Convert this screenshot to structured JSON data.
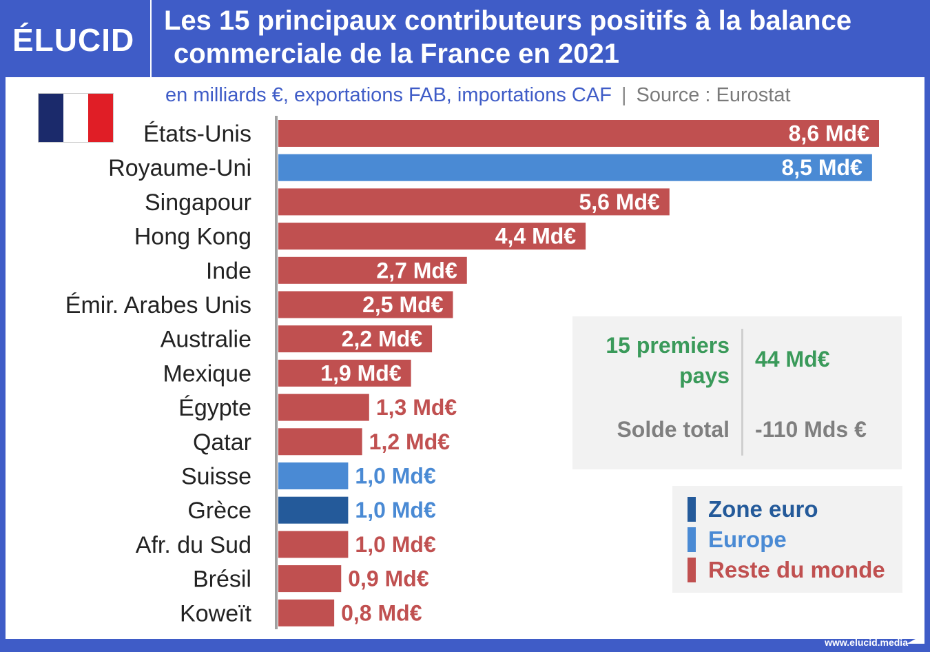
{
  "header": {
    "logo": "ÉLUCID",
    "title_line1": "Les 15 principaux contributeurs positifs à la balance",
    "title_line2": "commerciale de la France en 2021"
  },
  "subtitle": {
    "units": "en milliards €, exportations FAB, importations CAF",
    "separator": "|",
    "source": "Source : Eurostat"
  },
  "flag": {
    "colors": [
      "#1b2a6b",
      "#ffffff",
      "#e01e26"
    ]
  },
  "colors": {
    "zone_euro": "#245a9a",
    "europe": "#4a8ad4",
    "reste_du_monde": "#c05050",
    "summary_green": "#3a9a5a"
  },
  "chart_data": {
    "type": "bar",
    "orientation": "horizontal",
    "title": "Les 15 principaux contributeurs positifs à la balance commerciale de la France en 2021",
    "subtitle": "en milliards €, exportations FAB, importations CAF",
    "categories": [
      "États-Unis",
      "Royaume-Uni",
      "Singapour",
      "Hong Kong",
      "Inde",
      "Émir. Arabes Unis",
      "Australie",
      "Mexique",
      "Égypte",
      "Qatar",
      "Suisse",
      "Grèce",
      "Afr. du Sud",
      "Brésil",
      "Koweït"
    ],
    "values": [
      8.6,
      8.5,
      5.6,
      4.4,
      2.7,
      2.5,
      2.2,
      1.9,
      1.3,
      1.2,
      1.0,
      1.0,
      1.0,
      0.9,
      0.8
    ],
    "value_labels": [
      "8,6 Md€",
      "8,5 Md€",
      "5,6 Md€",
      "4,4 Md€",
      "2,7 Md€",
      "2,5 Md€",
      "2,2 Md€",
      "1,9 Md€",
      "1,3 Md€",
      "1,2 Md€",
      "1,0 Md€",
      "1,0 Md€",
      "1,0 Md€",
      "0,9 Md€",
      "0,8 Md€"
    ],
    "groups": [
      "reste_du_monde",
      "europe",
      "reste_du_monde",
      "reste_du_monde",
      "reste_du_monde",
      "reste_du_monde",
      "reste_du_monde",
      "reste_du_monde",
      "reste_du_monde",
      "reste_du_monde",
      "europe",
      "zone_euro",
      "reste_du_monde",
      "reste_du_monde",
      "reste_du_monde"
    ],
    "xlim": [
      0,
      8.6
    ],
    "grid": false,
    "legend_placement": "bottom-right",
    "unit": "Md€"
  },
  "summary": {
    "label1": "15 premiers pays",
    "value1": "44 Md€",
    "label2": "Solde total",
    "value2": "-110 Mds €"
  },
  "legend": [
    {
      "label": "Zone euro",
      "group": "zone_euro"
    },
    {
      "label": "Europe",
      "group": "europe"
    },
    {
      "label": "Reste du monde",
      "group": "reste_du_monde"
    }
  ],
  "footer": {
    "url": "www.elucid.media"
  }
}
